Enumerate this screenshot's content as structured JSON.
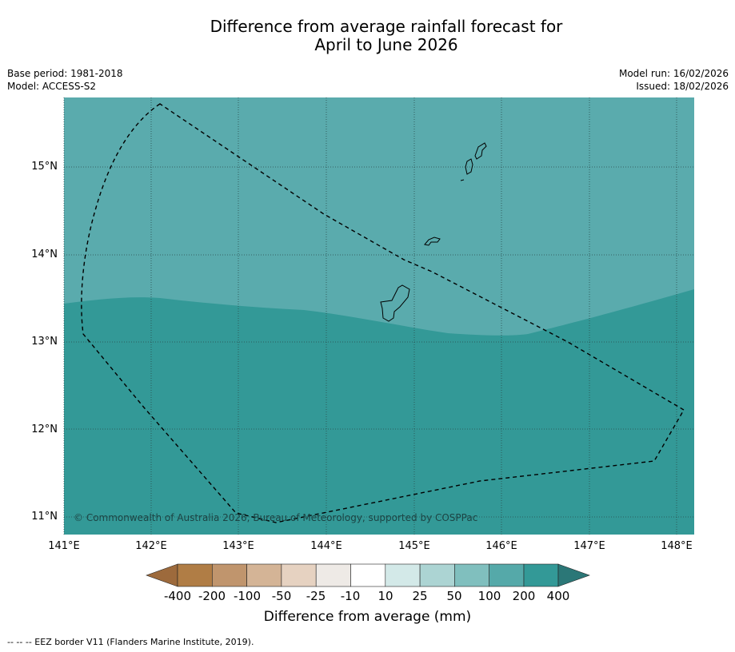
{
  "title": {
    "line1": "Difference from average rainfall forecast for",
    "line2": "April to June 2026"
  },
  "meta": {
    "base_period": "Base period: 1981-2018",
    "model": "Model: ACCESS-S2",
    "model_run": "Model run: 16/02/2026",
    "issued": "Issued: 18/02/2026"
  },
  "map": {
    "lat_labels": [
      "15°N",
      "14°N",
      "13°N",
      "12°N",
      "11°N"
    ],
    "lon_labels": [
      "141°E",
      "142°E",
      "143°E",
      "144°E",
      "145°E",
      "146°E",
      "147°E",
      "148°E"
    ],
    "copyright": "© Commonwealth of Australia 2026, Bureau of Meteorology, supported by COSPPac",
    "colors": {
      "category_100_200": "#5aabad",
      "category_200_400": "#339997",
      "gridline": "#2a4a4a",
      "coast": "#000000"
    }
  },
  "colorbar": {
    "ticks": [
      "-400",
      "-200",
      "-100",
      "-50",
      "-25",
      "-10",
      "10",
      "25",
      "50",
      "100",
      "200",
      "400"
    ],
    "colors": [
      "#9d6a3c",
      "#b07d45",
      "#c0956d",
      "#d4b496",
      "#e6d2c1",
      "#eeeae6",
      "#ffffff",
      "#d3e9e8",
      "#acd4d3",
      "#80bfbe",
      "#55a9a9",
      "#339997",
      "#2b7777"
    ],
    "label": "Difference from average (mm)"
  },
  "footnote": "--  --  -- EEZ border V11 (Flanders Marine Institute, 2019)."
}
